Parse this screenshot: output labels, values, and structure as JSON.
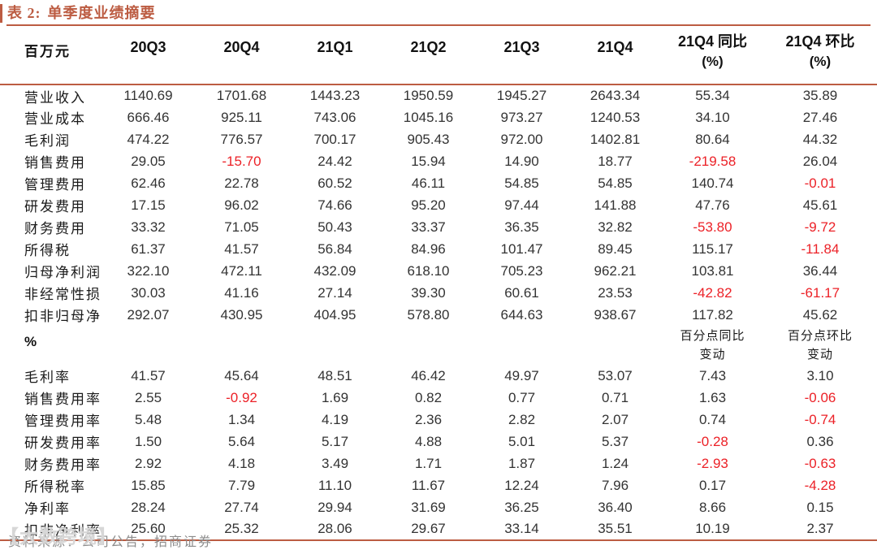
{
  "title": {
    "prefix": "表 2:",
    "text": "单季度业绩摘要"
  },
  "table": {
    "header": {
      "unit": "百万元",
      "quarters": [
        "20Q3",
        "20Q4",
        "21Q1",
        "21Q2",
        "21Q3",
        "21Q4"
      ],
      "yoy": {
        "line1": "21Q4 同比",
        "line2": "(%)"
      },
      "qoq": {
        "line1": "21Q4 环比",
        "line2": "(%)"
      }
    },
    "abs_rows": [
      {
        "label": "营业收入",
        "values": [
          "1140.69",
          "1701.68",
          "1443.23",
          "1950.59",
          "1945.27",
          "2643.34",
          "55.34",
          "35.89"
        ]
      },
      {
        "label": "营业成本",
        "values": [
          "666.46",
          "925.11",
          "743.06",
          "1045.16",
          "973.27",
          "1240.53",
          "34.10",
          "27.46"
        ]
      },
      {
        "label": "毛利润",
        "values": [
          "474.22",
          "776.57",
          "700.17",
          "905.43",
          "972.00",
          "1402.81",
          "80.64",
          "44.32"
        ]
      },
      {
        "label": "销售费用",
        "values": [
          "29.05",
          "-15.70",
          "24.42",
          "15.94",
          "14.90",
          "18.77",
          "-219.58",
          "26.04"
        ]
      },
      {
        "label": "管理费用",
        "values": [
          "62.46",
          "22.78",
          "60.52",
          "46.11",
          "54.85",
          "54.85",
          "140.74",
          "-0.01"
        ]
      },
      {
        "label": "研发费用",
        "values": [
          "17.15",
          "96.02",
          "74.66",
          "95.20",
          "97.44",
          "141.88",
          "47.76",
          "45.61"
        ]
      },
      {
        "label": "财务费用",
        "values": [
          "33.32",
          "71.05",
          "50.43",
          "33.37",
          "36.35",
          "32.82",
          "-53.80",
          "-9.72"
        ]
      },
      {
        "label": "所得税",
        "values": [
          "61.37",
          "41.57",
          "56.84",
          "84.96",
          "101.47",
          "89.45",
          "115.17",
          "-11.84"
        ]
      },
      {
        "label": "归母净利润",
        "values": [
          "322.10",
          "472.11",
          "432.09",
          "618.10",
          "705.23",
          "962.21",
          "103.81",
          "36.44"
        ]
      },
      {
        "label": "非经常性损",
        "values": [
          "30.03",
          "41.16",
          "27.14",
          "39.30",
          "60.61",
          "23.53",
          "-42.82",
          "-61.17"
        ]
      },
      {
        "label": "扣非归母净",
        "values": [
          "292.07",
          "430.95",
          "404.95",
          "578.80",
          "644.63",
          "938.67",
          "117.82",
          "45.62"
        ]
      }
    ],
    "pct_section": {
      "label": "%",
      "yoy_sub": {
        "line1": "百分点同比",
        "line2": "变动"
      },
      "qoq_sub": {
        "line1": "百分点环比",
        "line2": "变动"
      }
    },
    "pct_rows": [
      {
        "label": "毛利率",
        "values": [
          "41.57",
          "45.64",
          "48.51",
          "46.42",
          "49.97",
          "53.07",
          "7.43",
          "3.10"
        ]
      },
      {
        "label": "销售费用率",
        "values": [
          "2.55",
          "-0.92",
          "1.69",
          "0.82",
          "0.77",
          "0.71",
          "1.63",
          "-0.06"
        ]
      },
      {
        "label": "管理费用率",
        "values": [
          "5.48",
          "1.34",
          "4.19",
          "2.36",
          "2.82",
          "2.07",
          "0.74",
          "-0.74"
        ]
      },
      {
        "label": "研发费用率",
        "values": [
          "1.50",
          "5.64",
          "5.17",
          "4.88",
          "5.01",
          "5.37",
          "-0.28",
          "0.36"
        ]
      },
      {
        "label": "财务费用率",
        "values": [
          "2.92",
          "4.18",
          "3.49",
          "1.71",
          "1.87",
          "1.24",
          "-2.93",
          "-0.63"
        ]
      },
      {
        "label": "所得税率",
        "values": [
          "15.85",
          "7.79",
          "11.10",
          "11.67",
          "12.24",
          "7.96",
          "0.17",
          "-4.28"
        ]
      },
      {
        "label": "净利率",
        "values": [
          "28.24",
          "27.74",
          "29.94",
          "31.69",
          "36.25",
          "36.40",
          "8.66",
          "0.15"
        ]
      },
      {
        "label": "扣非净利率",
        "values": [
          "25.60",
          "25.32",
          "28.06",
          "29.67",
          "33.14",
          "35.51",
          "10.19",
          "2.37"
        ]
      }
    ]
  },
  "footer": {
    "source": "资料来源：公司公告，招商证券"
  },
  "watermark": {
    "text": "【大数跨境】"
  },
  "colors": {
    "accent": "#bc5c42",
    "negative": "#ec2127",
    "text": "#333333",
    "footer_gray": "#8c8c8c"
  }
}
